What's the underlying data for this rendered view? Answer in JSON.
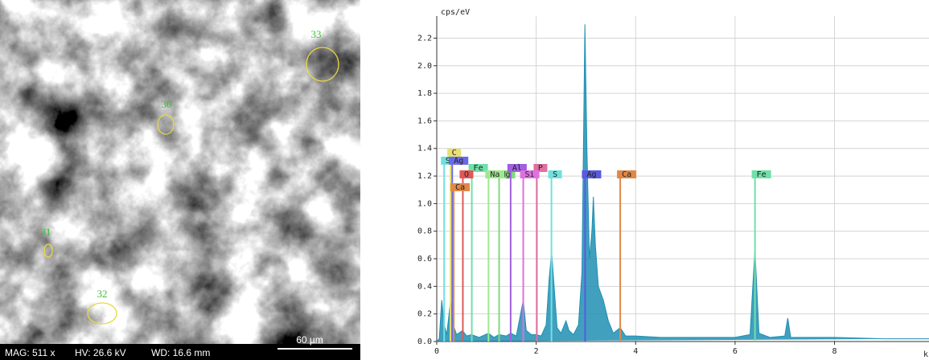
{
  "micrograph": {
    "circles": [
      {
        "label": "33"
      },
      {
        "label": "30"
      },
      {
        "label": "31"
      },
      {
        "label": "32"
      }
    ],
    "info": [
      "MAG: 511 x",
      "HV: 26.6 kV",
      "WD: 16.6 mm"
    ],
    "scale_bar": "60 µm"
  },
  "chart_data": {
    "type": "area",
    "y_label": "cps/eV",
    "x_label": "k",
    "x": [
      0,
      0.05,
      0.1,
      0.15,
      0.2,
      0.28,
      0.35,
      0.4,
      0.52,
      0.6,
      0.7,
      0.85,
      1.04,
      1.15,
      1.25,
      1.4,
      1.49,
      1.6,
      1.74,
      1.8,
      1.9,
      2.0,
      2.1,
      2.2,
      2.26,
      2.31,
      2.36,
      2.42,
      2.5,
      2.6,
      2.66,
      2.75,
      2.85,
      2.92,
      2.98,
      3.02,
      3.07,
      3.12,
      3.15,
      3.19,
      3.25,
      3.35,
      3.45,
      3.55,
      3.69,
      3.8,
      4.0,
      4.5,
      5.0,
      5.5,
      6.0,
      6.3,
      6.4,
      6.48,
      6.7,
      7.0,
      7.06,
      7.12,
      8.0,
      9.0,
      9.9
    ],
    "values": [
      0,
      0.02,
      0.3,
      0.12,
      0.05,
      0.3,
      0.1,
      0.05,
      0.08,
      0.04,
      0.05,
      0.03,
      0.06,
      0.03,
      0.05,
      0.04,
      0.06,
      0.04,
      0.3,
      0.08,
      0.05,
      0.05,
      0.04,
      0.12,
      0.45,
      0.65,
      0.4,
      0.1,
      0.06,
      0.15,
      0.08,
      0.05,
      0.12,
      0.5,
      2.3,
      1.4,
      0.6,
      0.8,
      1.05,
      0.7,
      0.4,
      0.3,
      0.15,
      0.06,
      0.1,
      0.04,
      0.04,
      0.03,
      0.03,
      0.03,
      0.03,
      0.05,
      0.67,
      0.06,
      0.03,
      0.04,
      0.17,
      0.03,
      0.03,
      0.02,
      0.02
    ],
    "color": "#1f8fb3",
    "element_lines": [
      {
        "name": "C",
        "energy": 0.277,
        "color": "#e8e070"
      },
      {
        "name": "S",
        "energy": 0.149,
        "color": "#70e0e0"
      },
      {
        "name": "Fe",
        "energy": 0.705,
        "color": "#70e0a8"
      },
      {
        "name": "Mg",
        "energy": 1.254,
        "color": "#80d880"
      },
      {
        "name": "Ag",
        "energy": 0.311,
        "color": "#6a6ae8"
      },
      {
        "name": "Al",
        "energy": 1.486,
        "color": "#a060e0"
      },
      {
        "name": "P",
        "energy": 2.013,
        "color": "#e070a0"
      },
      {
        "name": "O",
        "energy": 0.525,
        "color": "#e05858"
      },
      {
        "name": "Na",
        "energy": 1.041,
        "color": "#a0e890"
      },
      {
        "name": "Si",
        "energy": 1.74,
        "color": "#e070e0"
      },
      {
        "name": "S",
        "energy": 2.307,
        "color": "#70e0e0"
      },
      {
        "name": "Ag",
        "energy": 2.984,
        "color": "#5a5ae0"
      },
      {
        "name": "Ca",
        "energy": 3.69,
        "color": "#e08848"
      },
      {
        "name": "Fe",
        "energy": 6.4,
        "color": "#70e0a8"
      },
      {
        "name": "Ca",
        "energy": 0.341,
        "color": "#e08848"
      }
    ],
    "xlim": [
      0,
      9.9
    ],
    "ylim": [
      0,
      2.36
    ],
    "xticks": [
      0,
      2,
      4,
      6,
      8
    ],
    "yticks": [
      {
        "value": 0,
        "label": "0.0"
      },
      0.2,
      0.4,
      0.6,
      0.8,
      {
        "value": 1,
        "label": "1.0"
      },
      1.2,
      1.4,
      1.6,
      1.8,
      {
        "value": 2,
        "label": "2.0"
      },
      2.2
    ],
    "grid": true
  }
}
